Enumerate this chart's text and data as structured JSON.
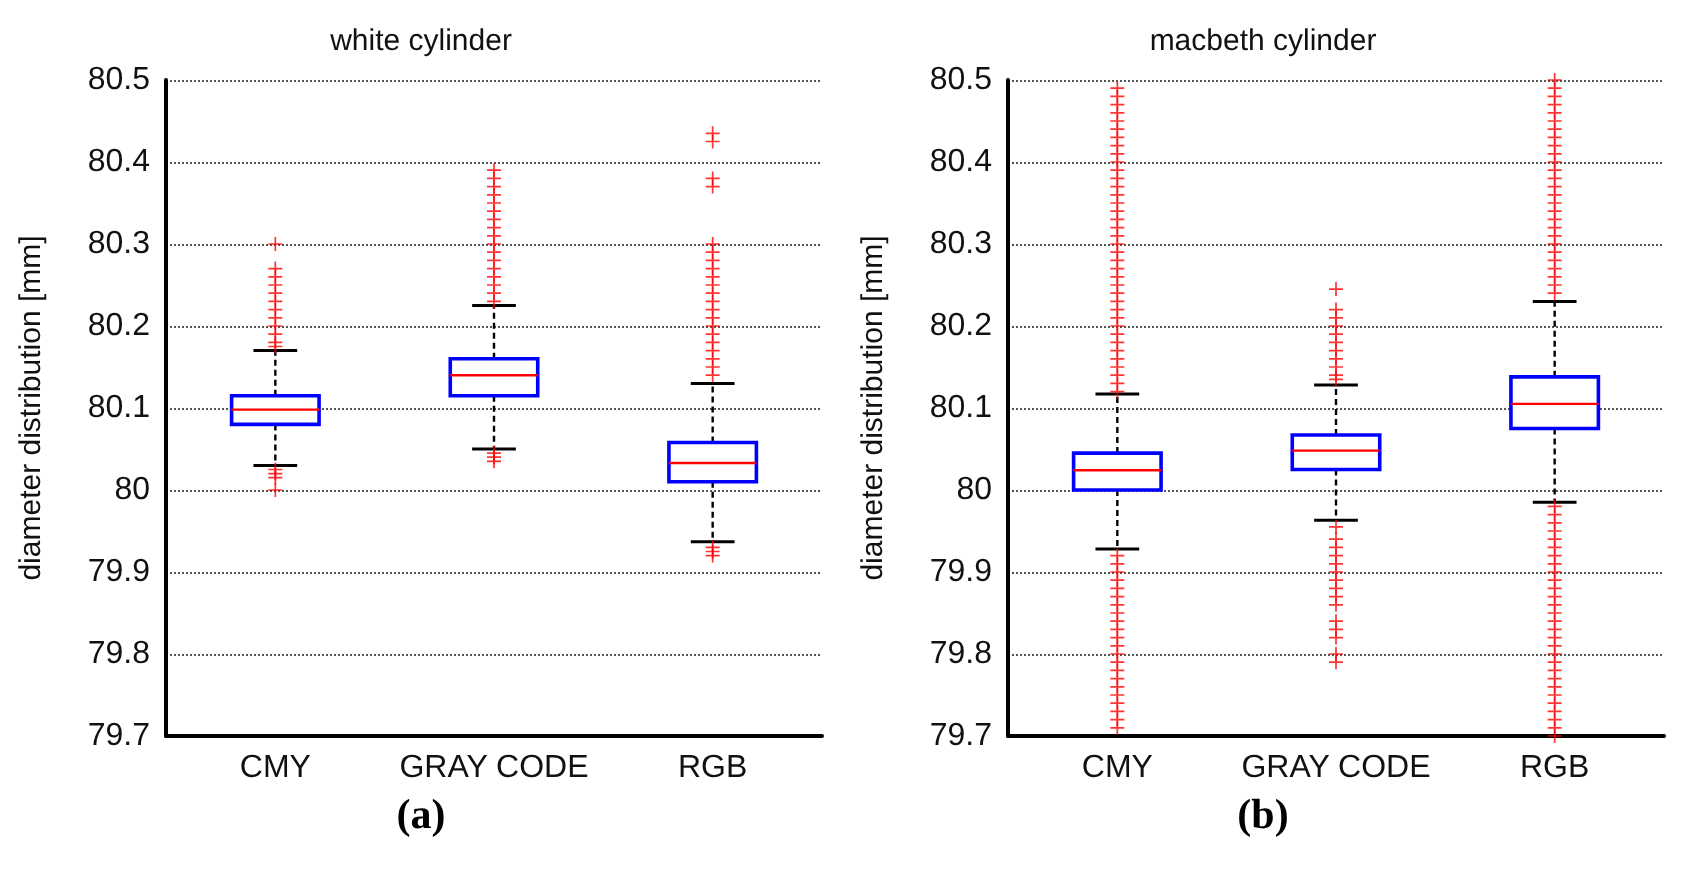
{
  "chart_data": [
    {
      "type": "box",
      "title": "white cylinder",
      "ylabel": "diameter distribution [mm]",
      "categories": [
        "CMY",
        "GRAY CODE",
        "RGB"
      ],
      "ylim": [
        79.7,
        80.5
      ],
      "yticks": [
        79.7,
        79.8,
        79.9,
        80,
        80.1,
        80.2,
        80.3,
        80.4,
        80.5
      ],
      "grid": "y",
      "annotations": [
        "(a)"
      ],
      "series": [
        {
          "color": "#0000ff",
          "boxes": [
            {
              "low": 80.03,
              "q1": 80.08,
              "median": 80.098,
              "q3": 80.115,
              "high": 80.17,
              "outliers": [
                80.175,
                80.18,
                80.19,
                80.2,
                80.21,
                80.22,
                80.23,
                80.24,
                80.25,
                80.26,
                80.27,
                80.3,
                80.025,
                80.02,
                80.015,
                80.0
              ]
            },
            {
              "low": 80.05,
              "q1": 80.115,
              "median": 80.14,
              "q3": 80.16,
              "high": 80.225,
              "outliers": [
                80.23,
                80.24,
                80.25,
                80.26,
                80.27,
                80.28,
                80.29,
                80.3,
                80.31,
                80.32,
                80.33,
                80.34,
                80.35,
                80.36,
                80.37,
                80.38,
                80.39,
                80.045,
                80.04,
                80.035
              ]
            },
            {
              "low": 79.937,
              "q1": 80.01,
              "median": 80.033,
              "q3": 80.058,
              "high": 80.13,
              "outliers": [
                80.14,
                80.15,
                80.16,
                80.17,
                80.18,
                80.19,
                80.2,
                80.21,
                80.22,
                80.23,
                80.24,
                80.25,
                80.26,
                80.27,
                80.28,
                80.29,
                80.3,
                80.37,
                80.38,
                80.425,
                80.435,
                79.93,
                79.925,
                79.92
              ]
            }
          ]
        }
      ]
    },
    {
      "type": "box",
      "title": "macbeth cylinder",
      "ylabel": "diameter distribution [mm]",
      "categories": [
        "CMY",
        "GRAY CODE",
        "RGB"
      ],
      "ylim": [
        79.7,
        80.5
      ],
      "yticks": [
        79.7,
        79.8,
        79.9,
        80,
        80.1,
        80.2,
        80.3,
        80.4,
        80.5
      ],
      "grid": "y",
      "annotations": [
        "(b)"
      ],
      "series": [
        {
          "color": "#0000ff",
          "boxes": [
            {
              "low": 79.928,
              "q1": 80.0,
              "median": 80.024,
              "q3": 80.045,
              "high": 80.117,
              "outliers": [
                80.12,
                80.13,
                80.14,
                80.15,
                80.16,
                80.17,
                80.18,
                80.19,
                80.2,
                80.21,
                80.22,
                80.23,
                80.24,
                80.25,
                80.26,
                80.27,
                80.28,
                80.29,
                80.3,
                80.31,
                80.32,
                80.33,
                80.34,
                80.35,
                80.36,
                80.37,
                80.38,
                80.39,
                80.4,
                80.41,
                80.42,
                80.43,
                80.44,
                80.45,
                80.46,
                80.47,
                80.48,
                80.49,
                79.92,
                79.91,
                79.9,
                79.89,
                79.88,
                79.87,
                79.86,
                79.85,
                79.84,
                79.83,
                79.82,
                79.81,
                79.8,
                79.79,
                79.78,
                79.77,
                79.76,
                79.75,
                79.74,
                79.73,
                79.72,
                79.71
              ]
            },
            {
              "low": 79.963,
              "q1": 80.025,
              "median": 80.048,
              "q3": 80.067,
              "high": 80.128,
              "outliers": [
                80.135,
                80.14,
                80.15,
                80.16,
                80.17,
                80.18,
                80.19,
                80.2,
                80.21,
                80.22,
                80.245,
                79.955,
                79.94,
                79.93,
                79.92,
                79.91,
                79.9,
                79.89,
                79.88,
                79.87,
                79.86,
                79.84,
                79.83,
                79.82,
                79.8,
                79.79
              ]
            },
            {
              "low": 79.985,
              "q1": 80.075,
              "median": 80.105,
              "q3": 80.138,
              "high": 80.23,
              "outliers": [
                80.24,
                80.25,
                80.26,
                80.27,
                80.28,
                80.29,
                80.3,
                80.31,
                80.32,
                80.33,
                80.34,
                80.35,
                80.36,
                80.37,
                80.38,
                80.39,
                80.4,
                80.41,
                80.42,
                80.43,
                80.44,
                80.45,
                80.46,
                80.47,
                80.48,
                80.49,
                80.5,
                79.98,
                79.97,
                79.96,
                79.95,
                79.94,
                79.93,
                79.92,
                79.91,
                79.9,
                79.89,
                79.88,
                79.87,
                79.86,
                79.85,
                79.84,
                79.83,
                79.82,
                79.81,
                79.8,
                79.79,
                79.78,
                79.77,
                79.76,
                79.75,
                79.74,
                79.73,
                79.72,
                79.71,
                79.7
              ]
            }
          ]
        }
      ]
    }
  ]
}
